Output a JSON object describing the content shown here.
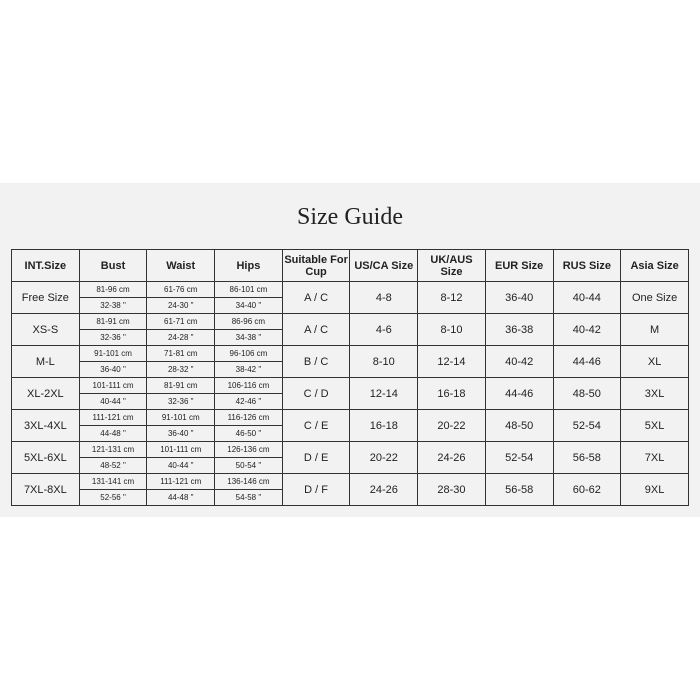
{
  "title": "Size Guide",
  "headers": [
    "INT.Size",
    "Bust",
    "Waist",
    "Hips",
    "Suitable For Cup",
    "US/CA Size",
    "UK/AUS Size",
    "EUR Size",
    "RUS Size",
    "Asia Size"
  ],
  "rows": [
    {
      "size": "Free Size",
      "bust_cm": "81-96 cm",
      "bust_in": "32-38 \"",
      "waist_cm": "61-76 cm",
      "waist_in": "24-30 \"",
      "hips_cm": "86-101 cm",
      "hips_in": "34-40 \"",
      "cup": "A / C",
      "us": "4-8",
      "uk": "8-12",
      "eur": "36-40",
      "rus": "40-44",
      "asia": "One Size"
    },
    {
      "size": "XS-S",
      "bust_cm": "81-91 cm",
      "bust_in": "32-36 \"",
      "waist_cm": "61-71 cm",
      "waist_in": "24-28 \"",
      "hips_cm": "86-96 cm",
      "hips_in": "34-38 \"",
      "cup": "A / C",
      "us": "4-6",
      "uk": "8-10",
      "eur": "36-38",
      "rus": "40-42",
      "asia": "M"
    },
    {
      "size": "M-L",
      "bust_cm": "91-101 cm",
      "bust_in": "36-40 \"",
      "waist_cm": "71-81 cm",
      "waist_in": "28-32 \"",
      "hips_cm": "96-106 cm",
      "hips_in": "38-42 \"",
      "cup": "B / C",
      "us": "8-10",
      "uk": "12-14",
      "eur": "40-42",
      "rus": "44-46",
      "asia": "XL"
    },
    {
      "size": "XL-2XL",
      "bust_cm": "101-111 cm",
      "bust_in": "40-44 \"",
      "waist_cm": "81-91 cm",
      "waist_in": "32-36 \"",
      "hips_cm": "106-116 cm",
      "hips_in": "42-46 \"",
      "cup": "C / D",
      "us": "12-14",
      "uk": "16-18",
      "eur": "44-46",
      "rus": "48-50",
      "asia": "3XL"
    },
    {
      "size": "3XL-4XL",
      "bust_cm": "111-121 cm",
      "bust_in": "44-48 \"",
      "waist_cm": "91-101 cm",
      "waist_in": "36-40 \"",
      "hips_cm": "116-126 cm",
      "hips_in": "46-50 \"",
      "cup": "C / E",
      "us": "16-18",
      "uk": "20-22",
      "eur": "48-50",
      "rus": "52-54",
      "asia": "5XL"
    },
    {
      "size": "5XL-6XL",
      "bust_cm": "121-131 cm",
      "bust_in": "48-52 \"",
      "waist_cm": "101-111 cm",
      "waist_in": "40-44 \"",
      "hips_cm": "126-136 cm",
      "hips_in": "50-54 \"",
      "cup": "D / E",
      "us": "20-22",
      "uk": "24-26",
      "eur": "52-54",
      "rus": "56-58",
      "asia": "7XL"
    },
    {
      "size": "7XL-8XL",
      "bust_cm": "131-141 cm",
      "bust_in": "52-56 \"",
      "waist_cm": "111-121 cm",
      "waist_in": "44-48 \"",
      "hips_cm": "136-146 cm",
      "hips_in": "54-58 \"",
      "cup": "D / F",
      "us": "24-26",
      "uk": "28-30",
      "eur": "56-58",
      "rus": "60-62",
      "asia": "9XL"
    }
  ]
}
